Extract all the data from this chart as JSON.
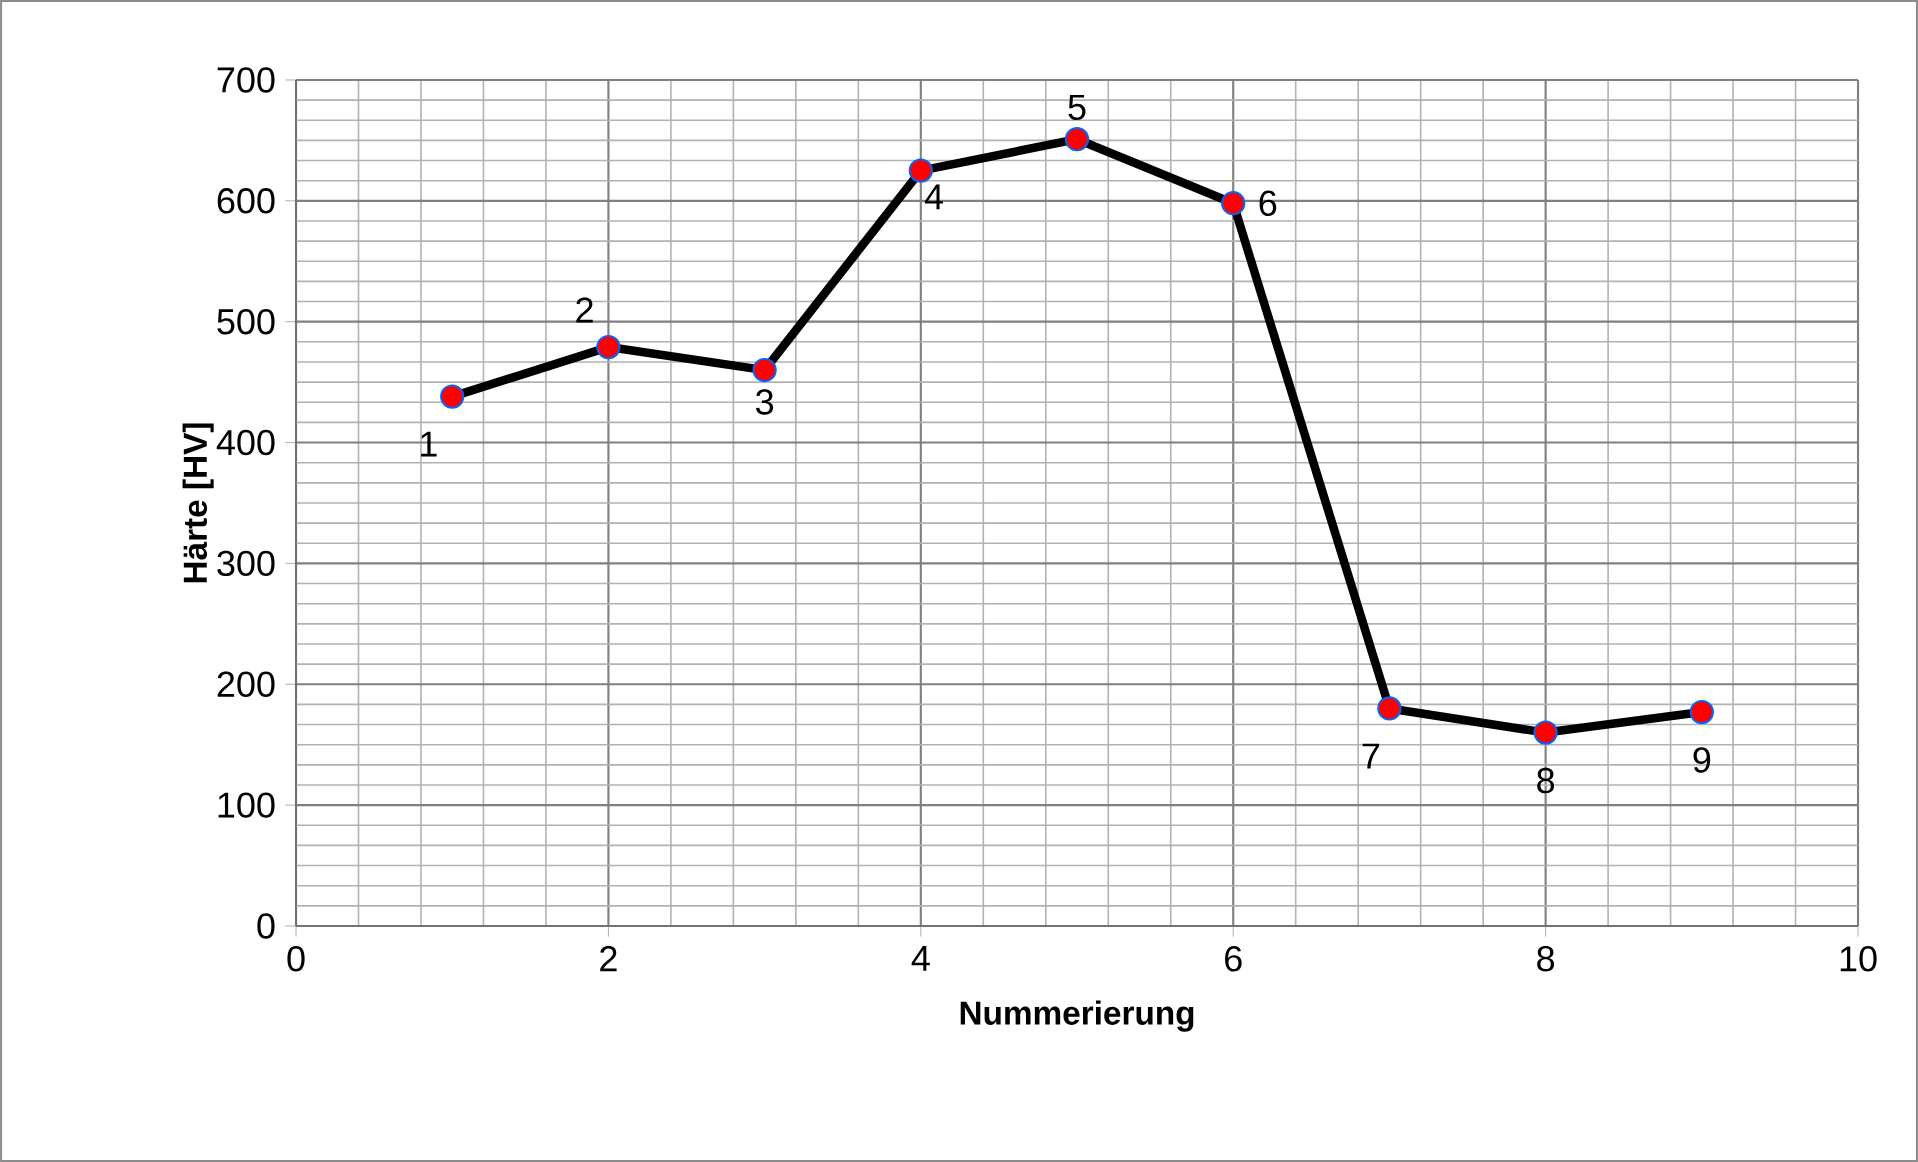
{
  "chart_data": {
    "type": "line",
    "xlabel": "Nummerierung",
    "ylabel": "Härte [HV]",
    "series": [
      {
        "color": "#000000",
        "colors": [
          "#ff0000",
          "#ff0000",
          "#ff0000",
          "#ff0000",
          "#ff0000",
          "#ff0000",
          "#ff0000",
          "#ff0000",
          "#ff0000"
        ],
        "x": [
          1,
          2,
          3,
          4,
          5,
          6,
          7,
          8,
          9
        ],
        "values": [
          438,
          479,
          460,
          625,
          651,
          598,
          180,
          160,
          177
        ]
      }
    ],
    "annotations": [
      {
        "text": "1",
        "x": 1,
        "y": 438
      },
      {
        "text": "2",
        "x": 2,
        "y": 479
      },
      {
        "text": "3",
        "x": 3,
        "y": 460
      },
      {
        "text": "4",
        "x": 4,
        "y": 625
      },
      {
        "text": "5",
        "x": 5,
        "y": 651
      },
      {
        "text": "6",
        "x": 6,
        "y": 598
      },
      {
        "text": "7",
        "x": 7,
        "y": 180
      },
      {
        "text": "8",
        "x": 8,
        "y": 160
      },
      {
        "text": "9",
        "x": 9,
        "y": 177
      }
    ],
    "xlim": [
      0,
      10
    ],
    "ylim": [
      0,
      700
    ],
    "xticks": [
      0,
      2,
      4,
      6,
      8,
      10
    ],
    "yticks": [
      0,
      100,
      200,
      300,
      400,
      500,
      600,
      700
    ],
    "grid": true,
    "marker": "circle",
    "line_style": "solid"
  }
}
